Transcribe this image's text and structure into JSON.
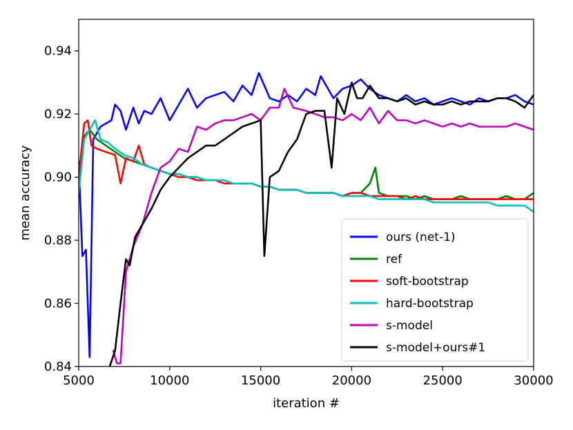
{
  "chart_data": {
    "type": "line",
    "xlabel": "iteration #",
    "ylabel": "mean accuracy",
    "xlim": [
      5000,
      30000
    ],
    "ylim": [
      0.84,
      0.95
    ],
    "xticks": [
      5000,
      10000,
      15000,
      20000,
      25000,
      30000
    ],
    "yticks": [
      0.84,
      0.86,
      0.88,
      0.9,
      0.92,
      0.94
    ],
    "ytick_labels": [
      "0.84",
      "0.86",
      "0.88",
      "0.90",
      "0.92",
      "0.94"
    ],
    "grid": false,
    "legend_position": "bottom-right",
    "series": [
      {
        "name": "ours (net-1)",
        "color": "#0000ff",
        "x": [
          5000,
          5200,
          5400,
          5600,
          5800,
          6000,
          6200,
          6500,
          6800,
          7000,
          7300,
          7600,
          8000,
          8300,
          8600,
          9000,
          9500,
          10000,
          10500,
          11000,
          11500,
          12000,
          12500,
          13000,
          13500,
          14000,
          14500,
          14900,
          15500,
          16000,
          16500,
          17000,
          17500,
          18000,
          18300,
          19000,
          19500,
          20000,
          20500,
          21000,
          21500,
          22000,
          22500,
          23000,
          23500,
          24000,
          24500,
          25000,
          25500,
          26000,
          26500,
          27000,
          27500,
          28000,
          28500,
          29000,
          29500,
          30000
        ],
        "values": [
          0.905,
          0.875,
          0.877,
          0.843,
          0.912,
          0.914,
          0.916,
          0.917,
          0.918,
          0.923,
          0.921,
          0.915,
          0.922,
          0.917,
          0.921,
          0.92,
          0.925,
          0.918,
          0.923,
          0.928,
          0.922,
          0.925,
          0.926,
          0.927,
          0.924,
          0.929,
          0.926,
          0.933,
          0.925,
          0.924,
          0.926,
          0.924,
          0.928,
          0.926,
          0.932,
          0.925,
          0.928,
          0.929,
          0.931,
          0.928,
          0.926,
          0.925,
          0.924,
          0.926,
          0.924,
          0.925,
          0.923,
          0.924,
          0.925,
          0.924,
          0.923,
          0.925,
          0.924,
          0.925,
          0.925,
          0.926,
          0.924,
          0.923
        ]
      },
      {
        "name": "ref",
        "color": "#008000",
        "x": [
          5000,
          5300,
          5600,
          6000,
          6500,
          7000,
          7500,
          8000,
          8500,
          9000,
          9500,
          10000,
          10500,
          11000,
          11500,
          12000,
          12500,
          13000,
          13500,
          14000,
          14500,
          15000,
          15500,
          16000,
          16500,
          17000,
          17500,
          18000,
          18500,
          19000,
          19500,
          20000,
          20500,
          21000,
          21300,
          21500,
          22000,
          22500,
          23000,
          23500,
          24000,
          24500,
          25000,
          25500,
          26000,
          26500,
          27000,
          27500,
          28000,
          28500,
          29000,
          29500,
          30000
        ],
        "values": [
          0.9,
          0.913,
          0.915,
          0.912,
          0.91,
          0.908,
          0.906,
          0.905,
          0.904,
          0.903,
          0.902,
          0.901,
          0.901,
          0.9,
          0.9,
          0.899,
          0.899,
          0.899,
          0.898,
          0.898,
          0.898,
          0.897,
          0.897,
          0.896,
          0.896,
          0.896,
          0.895,
          0.895,
          0.895,
          0.895,
          0.894,
          0.895,
          0.895,
          0.898,
          0.903,
          0.895,
          0.894,
          0.894,
          0.894,
          0.893,
          0.894,
          0.893,
          0.893,
          0.893,
          0.894,
          0.893,
          0.893,
          0.893,
          0.893,
          0.894,
          0.893,
          0.893,
          0.895
        ]
      },
      {
        "name": "soft-bootstrap",
        "color": "#ff0000",
        "x": [
          5000,
          5300,
          5500,
          5700,
          6000,
          6500,
          7000,
          7300,
          7600,
          8000,
          8300,
          8600,
          9000,
          9500,
          10000,
          10500,
          11000,
          11500,
          12000,
          12500,
          13000,
          13500,
          14000,
          14500,
          15000,
          15500,
          16000,
          16500,
          17000,
          17500,
          18000,
          18500,
          19000,
          19500,
          20000,
          20500,
          21000,
          21500,
          22000,
          22500,
          23000,
          23500,
          24000,
          24500,
          25000,
          25500,
          26000,
          26500,
          27000,
          27500,
          28000,
          28500,
          29000,
          29500,
          30000
        ],
        "values": [
          0.9,
          0.917,
          0.918,
          0.91,
          0.909,
          0.908,
          0.907,
          0.898,
          0.906,
          0.905,
          0.91,
          0.904,
          0.903,
          0.902,
          0.901,
          0.9,
          0.9,
          0.899,
          0.899,
          0.899,
          0.898,
          0.898,
          0.898,
          0.898,
          0.897,
          0.897,
          0.896,
          0.896,
          0.896,
          0.895,
          0.895,
          0.895,
          0.895,
          0.894,
          0.895,
          0.895,
          0.894,
          0.894,
          0.894,
          0.894,
          0.893,
          0.894,
          0.893,
          0.893,
          0.893,
          0.893,
          0.893,
          0.893,
          0.893,
          0.893,
          0.893,
          0.893,
          0.893,
          0.893,
          0.893
        ]
      },
      {
        "name": "hard-bootstrap",
        "color": "#00bfbf",
        "x": [
          5000,
          5300,
          5600,
          5900,
          6200,
          6600,
          7000,
          7500,
          8000,
          8500,
          9000,
          9500,
          10000,
          10500,
          11000,
          11500,
          12000,
          12500,
          13000,
          13500,
          14000,
          14500,
          15000,
          15500,
          16000,
          16500,
          17000,
          17500,
          18000,
          18500,
          19000,
          19500,
          20000,
          20500,
          21000,
          21500,
          22000,
          22500,
          23000,
          23500,
          24000,
          24500,
          25000,
          25500,
          26000,
          26500,
          27000,
          27500,
          28000,
          28500,
          29000,
          29500,
          30000
        ],
        "values": [
          0.895,
          0.912,
          0.915,
          0.918,
          0.912,
          0.911,
          0.909,
          0.907,
          0.906,
          0.904,
          0.903,
          0.902,
          0.901,
          0.901,
          0.9,
          0.9,
          0.899,
          0.899,
          0.899,
          0.898,
          0.898,
          0.898,
          0.897,
          0.897,
          0.896,
          0.896,
          0.896,
          0.895,
          0.895,
          0.895,
          0.895,
          0.894,
          0.894,
          0.894,
          0.894,
          0.893,
          0.893,
          0.893,
          0.893,
          0.893,
          0.893,
          0.892,
          0.892,
          0.892,
          0.892,
          0.892,
          0.892,
          0.892,
          0.891,
          0.891,
          0.891,
          0.891,
          0.889
        ]
      },
      {
        "name": "s-model",
        "color": "#bf00bf",
        "x": [
          6900,
          7100,
          7300,
          7600,
          8000,
          8500,
          9000,
          9500,
          10000,
          10500,
          11000,
          11500,
          12000,
          12500,
          13000,
          13500,
          14000,
          14500,
          15000,
          15500,
          16000,
          16300,
          16800,
          17500,
          18000,
          18500,
          19000,
          19500,
          20000,
          20500,
          21000,
          21500,
          22000,
          22500,
          23000,
          23500,
          24000,
          24500,
          25000,
          25500,
          26000,
          26500,
          27000,
          27500,
          28000,
          28500,
          29000,
          29500,
          30000
        ],
        "values": [
          0.845,
          0.841,
          0.841,
          0.87,
          0.878,
          0.885,
          0.895,
          0.903,
          0.905,
          0.909,
          0.908,
          0.916,
          0.915,
          0.917,
          0.918,
          0.918,
          0.919,
          0.92,
          0.918,
          0.922,
          0.922,
          0.928,
          0.922,
          0.921,
          0.92,
          0.919,
          0.919,
          0.918,
          0.92,
          0.918,
          0.922,
          0.917,
          0.921,
          0.918,
          0.918,
          0.917,
          0.918,
          0.917,
          0.916,
          0.917,
          0.916,
          0.917,
          0.916,
          0.916,
          0.916,
          0.916,
          0.917,
          0.916,
          0.915
        ]
      },
      {
        "name": "s-model+ours#1",
        "color": "#000000",
        "x": [
          6700,
          7000,
          7300,
          7600,
          7800,
          8100,
          8500,
          9000,
          9500,
          10000,
          10500,
          11000,
          11500,
          12000,
          12500,
          13000,
          13500,
          14000,
          14500,
          15000,
          15200,
          15500,
          16000,
          16500,
          17000,
          17500,
          18000,
          18500,
          18900,
          19200,
          19600,
          20000,
          20300,
          20600,
          21000,
          21500,
          22000,
          22500,
          23000,
          23500,
          24000,
          24500,
          25000,
          25500,
          26000,
          26500,
          27000,
          27500,
          28000,
          28500,
          29000,
          29500,
          30000
        ],
        "values": [
          0.84,
          0.845,
          0.86,
          0.874,
          0.872,
          0.881,
          0.885,
          0.89,
          0.896,
          0.9,
          0.903,
          0.906,
          0.908,
          0.91,
          0.91,
          0.912,
          0.914,
          0.916,
          0.917,
          0.918,
          0.875,
          0.9,
          0.902,
          0.908,
          0.912,
          0.92,
          0.921,
          0.921,
          0.903,
          0.925,
          0.92,
          0.93,
          0.925,
          0.925,
          0.929,
          0.925,
          0.925,
          0.924,
          0.925,
          0.923,
          0.924,
          0.923,
          0.923,
          0.924,
          0.923,
          0.924,
          0.924,
          0.924,
          0.925,
          0.925,
          0.924,
          0.922,
          0.926
        ]
      }
    ]
  }
}
